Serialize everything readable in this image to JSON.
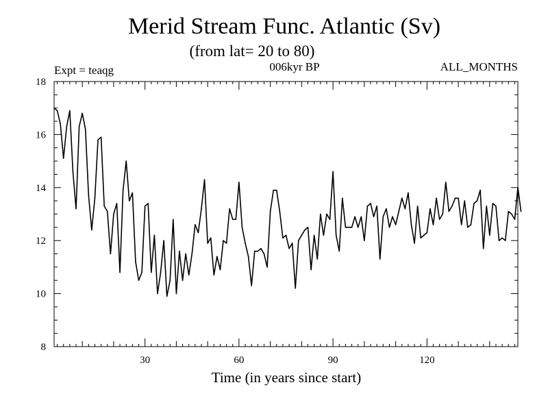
{
  "chart_data": {
    "type": "line",
    "title": "Merid Stream Func. Atlantic (Sv)",
    "subtitle": "(from lat= 20 to 80)",
    "annotation_left": "Expt = teaqg",
    "annotation_center": "006kyr BP",
    "annotation_right": "ALL_MONTHS",
    "xlabel": "Time (in years since start)",
    "ylabel": "",
    "xlim": [
      1,
      149
    ],
    "ylim": [
      8,
      18
    ],
    "xticks": [
      30,
      60,
      90,
      120
    ],
    "yticks": [
      8,
      10,
      12,
      14,
      16,
      18
    ],
    "x_start": 1,
    "x_step": 1,
    "series": [
      {
        "name": "Merid Stream Func. Atlantic",
        "values": [
          17.0,
          16.9,
          16.4,
          15.1,
          16.3,
          16.9,
          14.6,
          13.2,
          16.3,
          16.8,
          16.2,
          13.7,
          12.4,
          13.6,
          15.8,
          15.9,
          13.3,
          13.1,
          11.5,
          13.0,
          13.4,
          10.8,
          13.9,
          15.0,
          13.5,
          13.8,
          11.2,
          10.5,
          10.8,
          13.3,
          13.4,
          10.8,
          12.2,
          10.0,
          10.8,
          12.0,
          9.9,
          10.5,
          12.8,
          10.0,
          11.6,
          10.5,
          11.5,
          10.7,
          11.5,
          12.6,
          12.3,
          13.2,
          14.3,
          11.9,
          12.1,
          10.7,
          11.4,
          10.9,
          12.0,
          11.9,
          13.2,
          12.8,
          12.8,
          14.2,
          12.5,
          11.9,
          11.4,
          10.3,
          11.6,
          11.6,
          11.7,
          11.5,
          11.0,
          13.1,
          13.9,
          13.9,
          13.1,
          12.1,
          12.2,
          11.7,
          11.9,
          10.2,
          12.0,
          12.2,
          12.4,
          12.5,
          10.9,
          12.2,
          11.3,
          13.0,
          12.2,
          13.0,
          12.8,
          14.6,
          12.2,
          11.6,
          13.6,
          12.5,
          12.5,
          12.5,
          12.9,
          12.5,
          12.9,
          12.0,
          13.3,
          13.4,
          12.9,
          13.3,
          11.3,
          12.9,
          13.2,
          12.5,
          12.9,
          12.6,
          13.1,
          13.6,
          13.2,
          13.8,
          12.6,
          11.9,
          13.3,
          12.1,
          12.2,
          12.3,
          13.2,
          12.6,
          13.6,
          12.8,
          13.0,
          14.2,
          13.1,
          13.3,
          13.6,
          13.6,
          12.6,
          13.5,
          12.5,
          12.6,
          13.4,
          13.5,
          13.9,
          11.7,
          13.3,
          12.2,
          13.4,
          13.3,
          12.0,
          12.1,
          12.0,
          13.1,
          13.0,
          12.8,
          14.0,
          13.1
        ]
      }
    ],
    "grid": false,
    "legend": "none",
    "line_color": "#000000",
    "background": "#ffffff"
  }
}
